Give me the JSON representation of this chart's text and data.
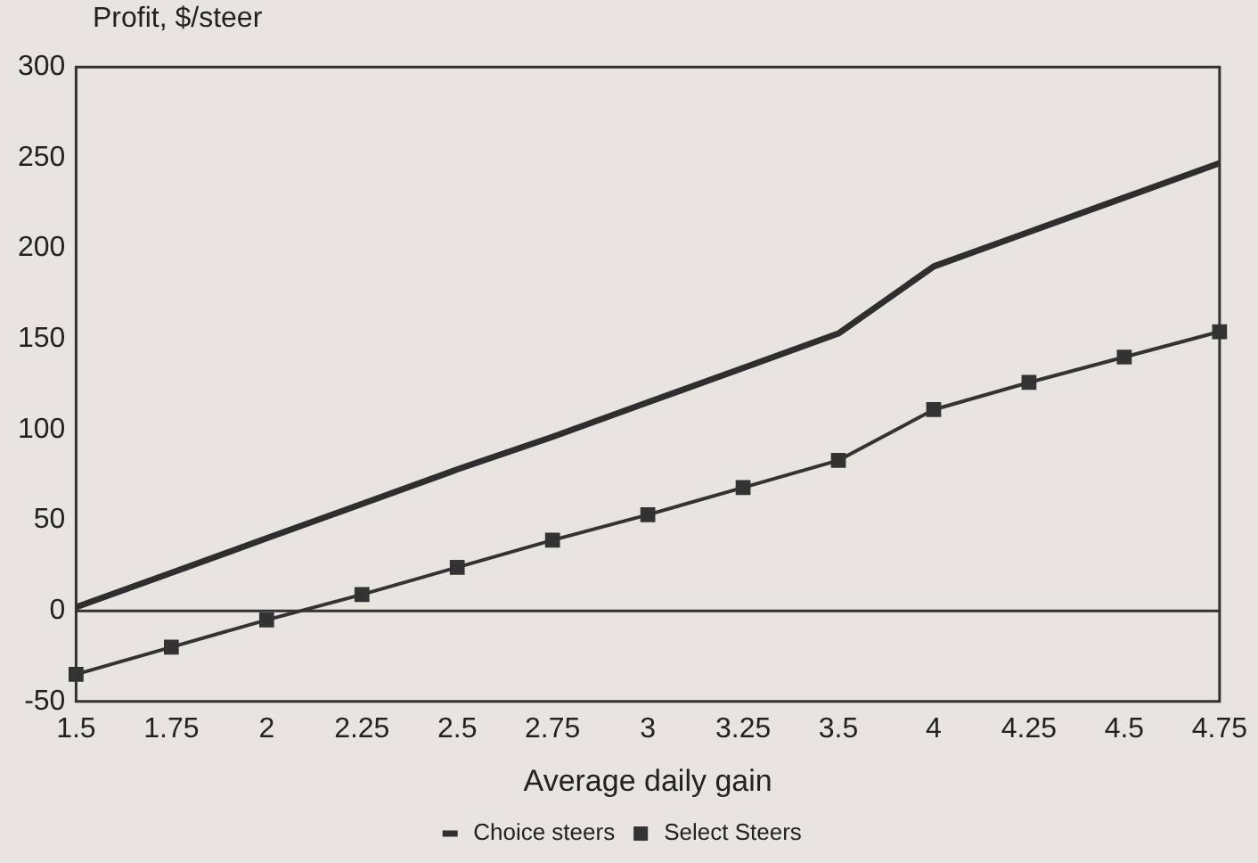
{
  "chart_data": {
    "type": "line",
    "xlabel": "Average daily gain",
    "ylabel": "Profit, $/steer",
    "categories": [
      "1.5",
      "1.75",
      "2",
      "2.25",
      "2.5",
      "2.75",
      "3",
      "3.25",
      "3.5",
      "4",
      "4.25",
      "4.5",
      "4.75"
    ],
    "series": [
      {
        "name": "Choice steers",
        "color": "#2e2e2e",
        "marker": "none",
        "values": [
          2,
          21,
          40,
          59,
          78,
          96,
          115,
          134,
          153,
          190,
          209,
          228,
          247
        ]
      },
      {
        "name": "Select Steers",
        "color": "#333333",
        "marker": "square",
        "values": [
          -35,
          -20,
          -5,
          9,
          24,
          39,
          53,
          68,
          83,
          111,
          126,
          140,
          154
        ]
      }
    ],
    "ylim": [
      -50,
      300
    ],
    "yticks": [
      -50,
      0,
      50,
      100,
      150,
      200,
      250,
      300
    ],
    "grid": false,
    "legend": "bottom",
    "ref_lines": [
      {
        "axis": "y",
        "value": 0,
        "color": "#333333"
      }
    ]
  }
}
